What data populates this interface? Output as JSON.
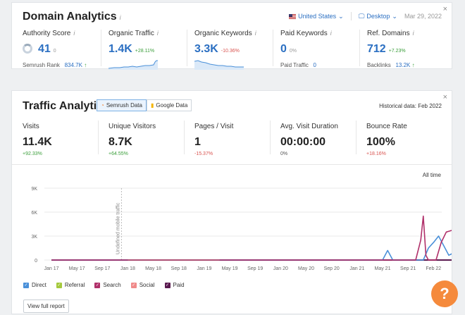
{
  "domain_analytics": {
    "title": "Domain Analytics",
    "info": "i",
    "close": "×",
    "country": "United States",
    "device": "Desktop",
    "date": "Mar 29, 2022",
    "metrics": [
      {
        "label": "Authority Score",
        "value": "41",
        "change": "0",
        "sub_label": "Semrush Rank",
        "sub_value": "834.7K",
        "sub_arrow": "↑"
      },
      {
        "label": "Organic Traffic",
        "value": "1.4K",
        "change": "+28.11%"
      },
      {
        "label": "Organic Keywords",
        "value": "3.3K",
        "change": "-10.36%"
      },
      {
        "label": "Paid Keywords",
        "value": "0",
        "change": "0%",
        "sub_label": "Paid Traffic",
        "sub_value": "0"
      },
      {
        "label": "Ref. Domains",
        "value": "712",
        "change": "+7.23%",
        "sub_label": "Backlinks",
        "sub_value": "13.2K",
        "sub_arrow": "↑"
      }
    ]
  },
  "traffic_analytics": {
    "title": "Traffic Analytics",
    "info": "i",
    "close": "×",
    "tabs": [
      "Semrush Data",
      "Google Data"
    ],
    "historical": "Historical data: Feb 2022",
    "metrics": [
      {
        "label": "Visits",
        "value": "11.4K",
        "change": "+92.33%"
      },
      {
        "label": "Unique Visitors",
        "value": "8.7K",
        "change": "+64.55%"
      },
      {
        "label": "Pages / Visit",
        "value": "1",
        "change": "-15.37%"
      },
      {
        "label": "Avg. Visit Duration",
        "value": "00:00:00",
        "change": "0%"
      },
      {
        "label": "Bounce Rate",
        "value": "100%",
        "change": "+18.16%"
      }
    ],
    "period": "All time",
    "legend": [
      "Direct",
      "Referral",
      "Search",
      "Social",
      "Paid"
    ],
    "view_full_report": "View full report"
  },
  "colors": {
    "direct": "#4a90d9",
    "referral": "#a4c93c",
    "search": "#b0306a",
    "social": "#f08a8a",
    "paid": "#5a1a50",
    "accent": "#2b6fc2",
    "help": "#f58a3c"
  },
  "chart_data": {
    "type": "line",
    "x": [
      "Jan 17",
      "May 17",
      "Sep 17",
      "Jan 18",
      "May 18",
      "Sep 18",
      "Jan 19",
      "May 19",
      "Sep 19",
      "Jan 20",
      "May 20",
      "Sep 20",
      "Jan 21",
      "May 21",
      "Sep 21",
      "Feb 22"
    ],
    "yticks": [
      "9K",
      "6K",
      "3K",
      "0"
    ],
    "ylim": [
      0,
      9000
    ],
    "annotation": "Undefined mobile traffic",
    "series": [
      {
        "name": "Direct",
        "points": [
          [
            0,
            0
          ],
          [
            13.0,
            0
          ],
          [
            13.2,
            1200
          ],
          [
            13.4,
            0
          ],
          [
            14.6,
            0
          ],
          [
            14.8,
            1500
          ],
          [
            15.0,
            2200
          ],
          [
            15.2,
            3000
          ],
          [
            15.4,
            1800
          ],
          [
            15.6,
            600
          ],
          [
            15.8,
            900
          ],
          [
            16.2,
            2200
          ],
          [
            16.4,
            3500
          ],
          [
            16.6,
            5000
          ]
        ]
      },
      {
        "name": "Search",
        "points": [
          [
            0,
            0
          ],
          [
            14.3,
            0
          ],
          [
            14.5,
            2500
          ],
          [
            14.6,
            5500
          ],
          [
            14.7,
            600
          ],
          [
            14.8,
            0
          ],
          [
            15.1,
            0
          ],
          [
            15.3,
            2200
          ],
          [
            15.5,
            3500
          ],
          [
            15.7,
            3700
          ],
          [
            16.0,
            3800
          ],
          [
            16.2,
            4000
          ],
          [
            16.4,
            6000
          ],
          [
            16.6,
            6500
          ]
        ]
      },
      {
        "name": "Paid",
        "points": [
          [
            0,
            0
          ],
          [
            16.6,
            0
          ]
        ]
      },
      {
        "name": "Referral",
        "points": [
          [
            3,
            0
          ],
          [
            6.6,
            0
          ]
        ]
      }
    ]
  },
  "help_label": "?"
}
